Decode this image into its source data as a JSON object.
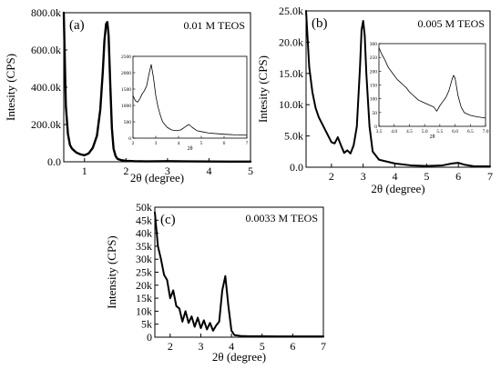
{
  "chart_data": [
    {
      "type": "line",
      "panel_label": "(a)",
      "annotation": "0.01 M TEOS",
      "xlabel": "2θ (degree)",
      "ylabel": "Intesity (CPS)",
      "xlim": [
        0.5,
        5
      ],
      "ylim": [
        0,
        800000
      ],
      "xticks": [
        1,
        2,
        3,
        4,
        5
      ],
      "xtick_labels": [
        "1",
        "2",
        "3",
        "4",
        "5"
      ],
      "yticks": [
        0,
        200000,
        400000,
        600000,
        800000
      ],
      "ytick_labels": [
        "0.0",
        "200.0k",
        "400.0k",
        "600.0k",
        "800.0k"
      ],
      "series": [
        {
          "x": [
            0.5,
            0.55,
            0.6,
            0.65,
            0.7,
            0.75,
            0.8,
            0.9,
            1.0,
            1.1,
            1.2,
            1.3,
            1.38,
            1.44,
            1.48,
            1.52,
            1.55,
            1.58,
            1.62,
            1.66,
            1.7,
            1.75,
            1.8,
            1.9,
            2.0,
            2.2,
            2.5,
            3.0,
            3.5,
            4.0,
            4.5,
            5.0
          ],
          "y": [
            800000,
            300000,
            150000,
            90000,
            70000,
            60000,
            50000,
            40000,
            35000,
            45000,
            75000,
            140000,
            280000,
            480000,
            650000,
            740000,
            750000,
            680000,
            420000,
            180000,
            70000,
            30000,
            15000,
            8000,
            5000,
            3000,
            2000,
            3000,
            2000,
            1500,
            1000,
            1000
          ]
        }
      ],
      "inset": {
        "type": "line",
        "xlim": [
          2,
          7
        ],
        "ylim": [
          0,
          2500
        ],
        "xticks": [
          2,
          3,
          4,
          5,
          6,
          7
        ],
        "xtick_labels": [
          "2",
          "3",
          "4",
          "5",
          "6",
          "7"
        ],
        "yticks": [
          0,
          500,
          1000,
          1500,
          2000,
          2500
        ],
        "ytick_labels": [
          "0",
          "500",
          "1000",
          "1500",
          "2000",
          "2500"
        ],
        "xlabel": "2θ",
        "x": [
          2.0,
          2.1,
          2.2,
          2.3,
          2.4,
          2.5,
          2.6,
          2.7,
          2.8,
          2.9,
          3.0,
          3.1,
          3.2,
          3.3,
          3.5,
          3.7,
          3.9,
          4.1,
          4.3,
          4.45,
          4.6,
          4.8,
          5.0,
          5.3,
          5.6,
          6.0,
          6.5,
          7.0
        ],
        "y": [
          1300,
          1150,
          1100,
          1200,
          1350,
          1450,
          1600,
          1950,
          2250,
          1850,
          1300,
          950,
          700,
          500,
          330,
          250,
          230,
          250,
          350,
          420,
          330,
          230,
          200,
          160,
          140,
          120,
          100,
          90
        ]
      }
    },
    {
      "type": "line",
      "panel_label": "(b)",
      "annotation": "0.005 M TEOS",
      "xlabel": "2θ (degree)",
      "ylabel": "Intesity (CPS)",
      "xlim": [
        1.2,
        7
      ],
      "ylim": [
        0,
        25000
      ],
      "xticks": [
        2,
        3,
        4,
        5,
        6,
        7
      ],
      "xtick_labels": [
        "2",
        "3",
        "4",
        "5",
        "6",
        "7"
      ],
      "yticks": [
        0,
        5000,
        10000,
        15000,
        20000,
        25000
      ],
      "ytick_labels": [
        "0.0",
        "5.0k",
        "10.0k",
        "15.0k",
        "20.0k",
        "25.0k"
      ],
      "series": [
        {
          "x": [
            1.2,
            1.3,
            1.4,
            1.5,
            1.6,
            1.7,
            1.8,
            1.9,
            2.0,
            2.1,
            2.2,
            2.3,
            2.4,
            2.5,
            2.6,
            2.7,
            2.8,
            2.9,
            2.95,
            3.0,
            3.05,
            3.1,
            3.2,
            3.3,
            3.5,
            4.0,
            4.5,
            5.0,
            5.5,
            5.8,
            6.0,
            6.2,
            6.5,
            7.0
          ],
          "y": [
            25000,
            16000,
            12000,
            9500,
            8000,
            7000,
            6000,
            5000,
            4000,
            3800,
            4800,
            3500,
            2300,
            2700,
            2200,
            3500,
            6500,
            16000,
            22000,
            23400,
            21000,
            15000,
            6500,
            2500,
            1200,
            600,
            300,
            200,
            300,
            600,
            700,
            400,
            150,
            150
          ]
        }
      ],
      "inset": {
        "type": "line",
        "xlim": [
          3.5,
          7.0
        ],
        "ylim": [
          0,
          300
        ],
        "xticks": [
          3.5,
          4.0,
          4.5,
          5.0,
          5.5,
          6.0,
          6.5,
          7.0
        ],
        "xtick_labels": [
          "3.5",
          "4.0",
          "4.5",
          "5.0",
          "5.5",
          "6.0",
          "6.5",
          "7.0"
        ],
        "yticks": [
          0,
          50,
          100,
          150,
          200,
          250,
          300
        ],
        "ytick_labels": [
          "0",
          "50",
          "100",
          "150",
          "200",
          "250",
          "300"
        ],
        "xlabel": "2θ",
        "x": [
          3.5,
          3.6,
          3.7,
          3.8,
          3.9,
          4.0,
          4.1,
          4.2,
          4.3,
          4.4,
          4.5,
          4.6,
          4.7,
          4.8,
          4.9,
          5.0,
          5.1,
          5.2,
          5.3,
          5.4,
          5.5,
          5.6,
          5.7,
          5.8,
          5.9,
          5.95,
          6.0,
          6.1,
          6.2,
          6.3,
          6.5,
          6.7,
          7.0
        ],
        "y": [
          285,
          260,
          240,
          215,
          200,
          185,
          170,
          160,
          150,
          140,
          125,
          115,
          105,
          95,
          90,
          85,
          80,
          75,
          70,
          55,
          75,
          90,
          105,
          130,
          170,
          185,
          175,
          110,
          70,
          50,
          40,
          35,
          30
        ]
      }
    },
    {
      "type": "line",
      "panel_label": "(c)",
      "annotation": "0.0033 M TEOS",
      "xlabel": "2θ (degree)",
      "ylabel": "Intensity (CPS)",
      "xlim": [
        1.5,
        7
      ],
      "ylim": [
        0,
        50000
      ],
      "xticks": [
        2,
        3,
        4,
        5,
        6,
        7
      ],
      "xtick_labels": [
        "2",
        "3",
        "4",
        "5",
        "6",
        "7"
      ],
      "yticks": [
        0,
        5000,
        10000,
        15000,
        20000,
        25000,
        30000,
        35000,
        40000,
        45000,
        50000
      ],
      "ytick_labels": [
        "0",
        "5k",
        "10k",
        "15k",
        "20k",
        "25k",
        "30k",
        "35k",
        "40k",
        "45k",
        "50k"
      ],
      "series": [
        {
          "x": [
            1.5,
            1.6,
            1.7,
            1.8,
            1.9,
            2.0,
            2.1,
            2.2,
            2.3,
            2.4,
            2.5,
            2.6,
            2.7,
            2.8,
            2.9,
            3.0,
            3.1,
            3.2,
            3.3,
            3.4,
            3.5,
            3.6,
            3.7,
            3.8,
            3.9,
            4.0,
            4.1,
            4.3,
            4.5,
            5.0,
            5.5,
            6.0,
            6.5,
            7.0
          ],
          "y": [
            48000,
            35000,
            30000,
            24000,
            22000,
            15000,
            18000,
            12000,
            11000,
            6000,
            10000,
            5500,
            8000,
            4000,
            7500,
            3500,
            6500,
            3000,
            5500,
            2500,
            4500,
            6000,
            18000,
            23500,
            12000,
            2500,
            800,
            500,
            400,
            350,
            300,
            300,
            300,
            300
          ]
        }
      ]
    }
  ]
}
